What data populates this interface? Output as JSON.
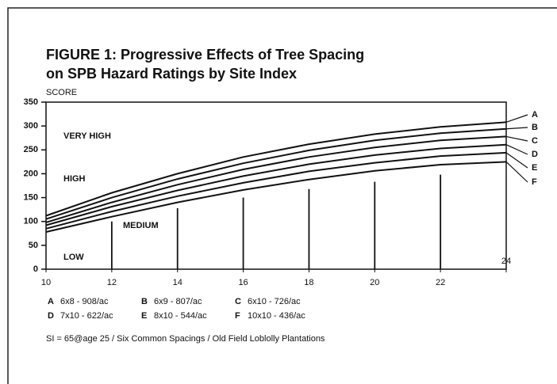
{
  "chart_data": {
    "type": "line",
    "title": "FIGURE 1: Progressive Effects of Tree Spacing",
    "subtitle": "on SPB Hazard Ratings by Site Index",
    "y_label": "SCORE",
    "x": [
      10,
      12,
      14,
      16,
      18,
      20,
      22,
      24
    ],
    "series": [
      {
        "name": "A",
        "description": "6x8 - 908/ac",
        "color": "#111111",
        "values": [
          112,
          160,
          200,
          235,
          262,
          283,
          298,
          308
        ]
      },
      {
        "name": "B",
        "description": "6x9 - 807/ac",
        "color": "#111111",
        "values": [
          105,
          150,
          189,
          222,
          249,
          270,
          285,
          294
        ]
      },
      {
        "name": "C",
        "description": "6x10 - 726/ac",
        "color": "#111111",
        "values": [
          98,
          140,
          177,
          209,
          235,
          255,
          270,
          278
        ]
      },
      {
        "name": "D",
        "description": "7x10 - 622/ac",
        "color": "#111111",
        "values": [
          92,
          131,
          165,
          195,
          220,
          239,
          253,
          261
        ]
      },
      {
        "name": "E",
        "description": "8x10 - 544/ac",
        "color": "#111111",
        "values": [
          85,
          121,
          153,
          181,
          205,
          223,
          237,
          244
        ]
      },
      {
        "name": "F",
        "description": "10x10 - 436/ac",
        "color": "#111111",
        "values": [
          78,
          110,
          140,
          166,
          188,
          206,
          219,
          225
        ]
      }
    ],
    "markers": [
      {
        "x": 12,
        "value": 100
      },
      {
        "x": 14,
        "value": 128
      },
      {
        "x": 16,
        "value": 150
      },
      {
        "x": 18,
        "value": 168
      },
      {
        "x": 20,
        "value": 183
      },
      {
        "x": 22,
        "value": 198
      }
    ],
    "zones": [
      "VERY HIGH",
      "HIGH",
      "MEDIUM",
      "LOW"
    ],
    "footnote": "SI = 65@age 25  /  Six Common Spacings  /  Old Field Loblolly Plantations",
    "xlim": [
      10,
      24
    ],
    "ylim": [
      0,
      350
    ],
    "xticks": [
      10,
      12,
      14,
      16,
      18,
      20,
      22,
      24
    ],
    "yticks": [
      0,
      50,
      100,
      150,
      200,
      250,
      300,
      350
    ],
    "grid": false
  }
}
